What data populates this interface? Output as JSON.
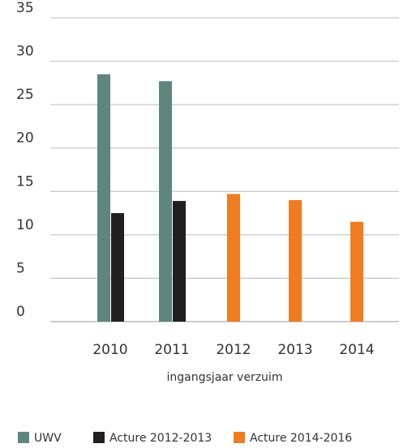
{
  "chart_data": {
    "type": "bar",
    "categories": [
      "2010",
      "2011",
      "2012",
      "2013",
      "2014"
    ],
    "series": [
      {
        "name": "UWV",
        "color": "#5f857f",
        "values": [
          28.5,
          27.7,
          null,
          null,
          null
        ]
      },
      {
        "name": "Acture 2012-2013",
        "color": "#231f20",
        "values": [
          12.5,
          13.9,
          null,
          null,
          null
        ]
      },
      {
        "name": "Acture 2014-2016",
        "color": "#f07c22",
        "values": [
          null,
          null,
          14.7,
          14.0,
          11.5
        ]
      }
    ],
    "xlabel": "ingangsjaar verzuim",
    "ylim": [
      0,
      35
    ],
    "yticks": [
      0,
      5,
      10,
      15,
      20,
      25,
      30,
      35
    ],
    "grid": true,
    "legend": "bottom"
  }
}
